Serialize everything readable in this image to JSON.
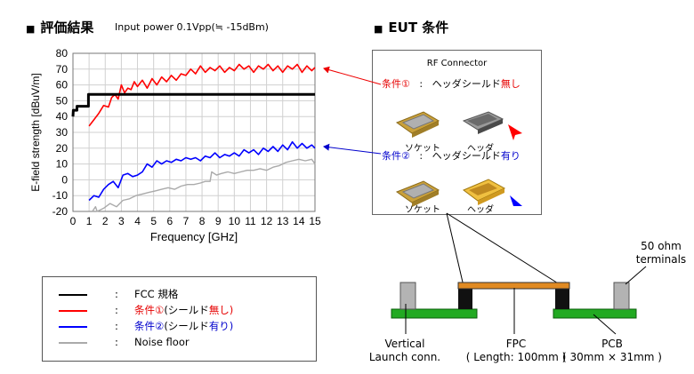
{
  "left_heading": {
    "bullet": "■",
    "title": "評価結果",
    "input_power": "Input power 0.1Vpp(≒ -15dBm)"
  },
  "right_heading": {
    "bullet": "■",
    "title": "EUT 条件"
  },
  "chart_data": {
    "type": "line",
    "title": "",
    "xlabel": "Frequency [GHz]",
    "ylabel": "E-field strength [dBuV/m]",
    "xlim": [
      0,
      15
    ],
    "ylim": [
      -20,
      80
    ],
    "xticks": [
      "0",
      "1",
      "2",
      "3",
      "4",
      "5",
      "6",
      "7",
      "8",
      "9",
      "10",
      "11",
      "12",
      "13",
      "14",
      "15"
    ],
    "yticks": [
      "-20",
      "-10",
      "0",
      "10",
      "20",
      "30",
      "40",
      "50",
      "60",
      "70",
      "80"
    ],
    "grid": true,
    "legend_position": "below-left",
    "series": [
      {
        "name": "FCC 規格",
        "color": "#000000",
        "x": [
          0,
          0.02,
          0.25,
          0.25,
          0.96,
          0.96,
          15
        ],
        "y": [
          40,
          44,
          44,
          46.5,
          46.5,
          54,
          54
        ]
      },
      {
        "name": "条件①(シールド無し)",
        "color": "#ff0000",
        "x": [
          1.0,
          1.3,
          1.6,
          1.9,
          2.2,
          2.4,
          2.6,
          2.8,
          3.0,
          3.2,
          3.4,
          3.6,
          3.8,
          4.0,
          4.3,
          4.6,
          4.9,
          5.2,
          5.5,
          5.8,
          6.1,
          6.4,
          6.7,
          7.0,
          7.3,
          7.6,
          7.9,
          8.2,
          8.5,
          8.8,
          9.1,
          9.4,
          9.7,
          10.0,
          10.3,
          10.6,
          10.9,
          11.2,
          11.5,
          11.8,
          12.1,
          12.4,
          12.7,
          13.0,
          13.3,
          13.6,
          13.9,
          14.2,
          14.5,
          14.8,
          15.0
        ],
        "y": [
          34,
          38,
          42,
          47,
          46,
          52,
          54,
          51,
          60,
          55,
          58,
          57,
          62,
          59,
          63,
          58,
          64,
          60,
          65,
          62,
          66,
          63,
          67,
          66,
          70,
          67,
          72,
          68,
          71,
          69,
          72,
          68,
          71,
          69,
          73,
          70,
          72,
          68,
          72,
          70,
          73,
          69,
          72,
          68,
          72,
          70,
          73,
          68,
          72,
          69,
          71
        ]
      },
      {
        "name": "条件②(シールド有り)",
        "color": "#0000ff",
        "x": [
          1.0,
          1.3,
          1.6,
          1.9,
          2.2,
          2.5,
          2.8,
          3.1,
          3.4,
          3.7,
          4.0,
          4.3,
          4.6,
          4.9,
          5.2,
          5.5,
          5.8,
          6.1,
          6.4,
          6.7,
          7.0,
          7.3,
          7.6,
          7.9,
          8.2,
          8.5,
          8.8,
          9.1,
          9.4,
          9.7,
          10.0,
          10.3,
          10.6,
          10.9,
          11.2,
          11.5,
          11.8,
          12.1,
          12.4,
          12.7,
          13.0,
          13.3,
          13.6,
          13.9,
          14.2,
          14.5,
          14.8,
          15.0
        ],
        "y": [
          -13,
          -10,
          -11,
          -6,
          -3,
          -1,
          -5,
          3,
          4,
          2,
          3,
          5,
          10,
          8,
          12,
          10,
          12,
          11,
          13,
          12,
          14,
          13,
          14,
          12,
          15,
          14,
          17,
          14,
          16,
          15,
          17,
          15,
          19,
          17,
          19,
          16,
          20,
          18,
          21,
          18,
          22,
          19,
          24,
          20,
          23,
          20,
          22,
          20
        ]
      },
      {
        "name": "Noise floor",
        "color": "#aaaaaa",
        "x": [
          1.2,
          1.4,
          1.5,
          1.9,
          2.3,
          2.7,
          3.1,
          3.5,
          3.9,
          4.3,
          4.7,
          5.1,
          5.5,
          5.9,
          6.3,
          6.7,
          7.1,
          7.5,
          7.9,
          8.2,
          8.5,
          8.6,
          8.9,
          9.2,
          9.6,
          10.0,
          10.4,
          10.8,
          11.2,
          11.6,
          12.0,
          12.4,
          12.8,
          13.2,
          13.6,
          14.0,
          14.4,
          14.8,
          15.0
        ],
        "y": [
          -20,
          -17,
          -20,
          -18,
          -15,
          -17,
          -13,
          -12,
          -10,
          -9,
          -8,
          -7,
          -6,
          -5,
          -6,
          -4,
          -3,
          -3,
          -2,
          -1,
          -1,
          5,
          3,
          4,
          5,
          4,
          5,
          6,
          6,
          7,
          6,
          8,
          9,
          11,
          12,
          13,
          12,
          13,
          10
        ]
      }
    ]
  },
  "legend": {
    "colon": ":",
    "items": [
      {
        "prefix": "FCC 規格",
        "prefix_color": "#000000",
        "middle": "",
        "middle_color": "#000000",
        "suffix": "",
        "line_color": "#000000"
      },
      {
        "prefix": "条件①",
        "prefix_color": "#e60000",
        "middle": "(シールド",
        "middle_color": "#000000",
        "suffix": "無し)",
        "suffix_color": "#e60000",
        "line_color": "#ff0000"
      },
      {
        "prefix": "条件②",
        "prefix_color": "#0000cc",
        "middle": "(シールド",
        "middle_color": "#000000",
        "suffix": "有り)",
        "suffix_color": "#0000cc",
        "line_color": "#0000ff"
      },
      {
        "prefix": "Noise floor",
        "prefix_color": "#000000",
        "middle": "",
        "middle_color": "#000000",
        "suffix": "",
        "line_color": "#aaaaaa"
      }
    ]
  },
  "eut": {
    "title": "RF Connector",
    "cond1": {
      "label": "条件①",
      "colon": ":",
      "text": "ヘッダシールド",
      "tail": "無し"
    },
    "cond2": {
      "label": "条件②",
      "colon": ":",
      "text": "ヘッダシールド",
      "tail": "有り"
    },
    "socket_label": "ソケット",
    "header_label": "ヘッダ"
  },
  "diagram": {
    "terminals": "50 ohm\nterminals",
    "vertical": "Vertical\nLaunch conn.",
    "fpc": "FPC\n( Length: 100mm )",
    "pcb": "PCB\n( 30mm × 31mm )"
  }
}
